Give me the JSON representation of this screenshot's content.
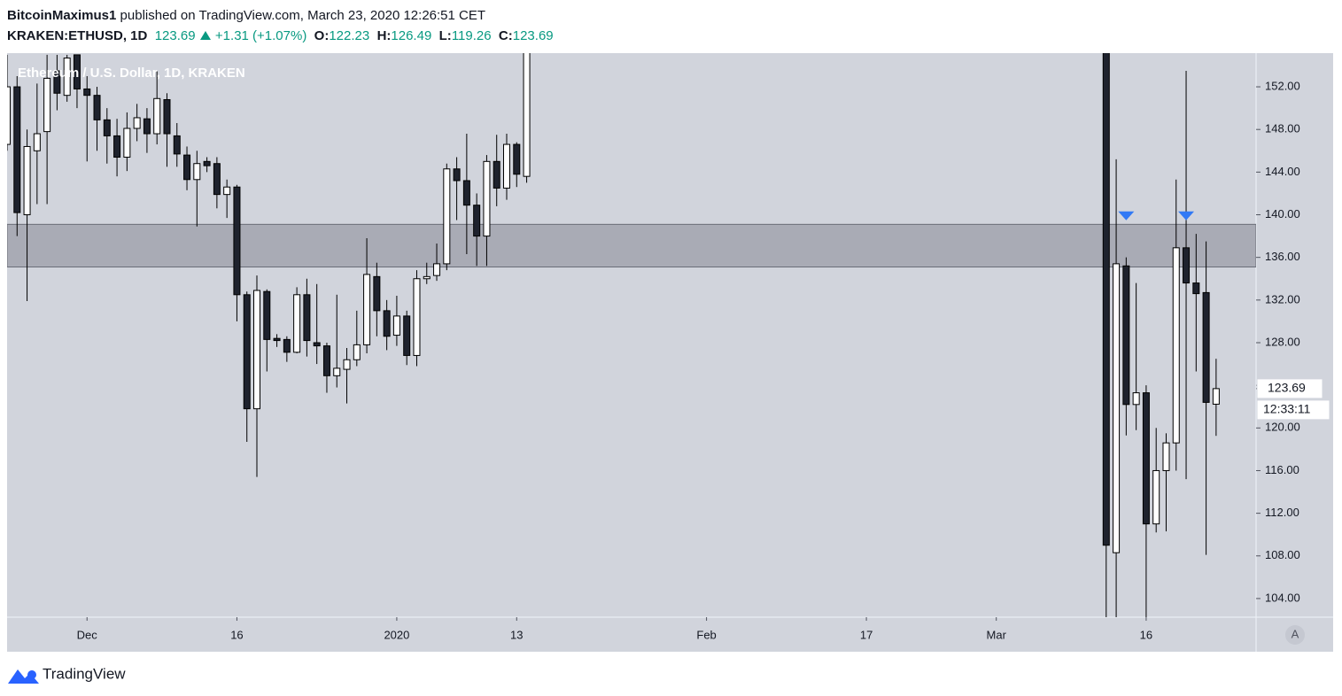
{
  "header": {
    "author": "BitcoinMaximus1",
    "published": "published on TradingView.com, March 23, 2020 12:26:51 CET",
    "symbol": "KRAKEN:ETHUSD, 1D",
    "price": 123.69,
    "change": "+1.31 (+1.07%)",
    "open_label": "O:",
    "open": 122.23,
    "high_label": "H:",
    "high": 126.49,
    "low_label": "L:",
    "low": 119.26,
    "close_label": "C:",
    "close": 123.69
  },
  "chart_data": {
    "type": "candlestick",
    "legend": "Ethereum / U.S. Dollar, 1D, KRAKEN",
    "x": [
      "2019-11-23",
      "2019-11-24",
      "2019-11-25",
      "2019-11-26",
      "2019-11-27",
      "2019-11-28",
      "2019-11-29",
      "2019-11-30",
      "2019-12-01",
      "2019-12-02",
      "2019-12-03",
      "2019-12-04",
      "2019-12-05",
      "2019-12-06",
      "2019-12-07",
      "2019-12-08",
      "2019-12-09",
      "2019-12-10",
      "2019-12-11",
      "2019-12-12",
      "2019-12-13",
      "2019-12-14",
      "2019-12-15",
      "2019-12-16",
      "2019-12-17",
      "2019-12-18",
      "2019-12-19",
      "2019-12-20",
      "2019-12-21",
      "2019-12-22",
      "2019-12-23",
      "2019-12-24",
      "2019-12-25",
      "2019-12-26",
      "2019-12-27",
      "2019-12-28",
      "2019-12-29",
      "2019-12-30",
      "2019-12-31",
      "2020-01-01",
      "2020-01-02",
      "2020-01-03",
      "2020-01-04",
      "2020-01-05",
      "2020-01-06",
      "2020-01-07",
      "2020-01-08",
      "2020-01-09",
      "2020-01-10",
      "2020-01-11",
      "2020-01-12",
      "2020-01-13",
      "2020-01-14",
      "2020-03-12",
      "2020-03-13",
      "2020-03-14",
      "2020-03-15",
      "2020-03-16",
      "2020-03-17",
      "2020-03-18",
      "2020-03-19",
      "2020-03-20",
      "2020-03-21",
      "2020-03-22",
      "2020-03-23"
    ],
    "open": [
      146.6,
      152.0,
      140.0,
      146.0,
      147.8,
      153.5,
      151.2,
      155.0,
      151.8,
      151.2,
      148.9,
      147.4,
      145.4,
      148.1,
      149.0,
      147.6,
      150.8,
      147.4,
      145.6,
      143.3,
      145.0,
      144.8,
      141.9,
      142.6,
      132.5,
      121.8,
      132.8,
      128.4,
      128.3,
      127.1,
      132.5,
      128.0,
      127.7,
      124.9,
      125.5,
      126.4,
      127.8,
      134.2,
      131.0,
      128.7,
      130.5,
      126.8,
      134.0,
      134.3,
      135.4,
      144.3,
      143.2,
      140.9,
      138.0,
      145.0,
      142.5,
      146.6,
      143.6,
      194.0,
      108.3,
      135.2,
      122.2,
      123.3,
      111.0,
      116.0,
      118.6,
      136.9,
      133.6,
      132.7,
      122.23
    ],
    "high": [
      155.0,
      153.0,
      148.0,
      152.3,
      155.0,
      155.0,
      155.0,
      155.0,
      153.0,
      152.0,
      150.0,
      149.0,
      149.6,
      150.4,
      150.0,
      153.5,
      151.4,
      148.6,
      146.4,
      146.0,
      145.4,
      145.4,
      143.3,
      142.8,
      132.8,
      134.3,
      133.0,
      128.8,
      128.6,
      133.2,
      134.0,
      133.5,
      128.0,
      132.5,
      127.5,
      131.0,
      137.8,
      135.5,
      132.0,
      132.4,
      131.0,
      134.8,
      135.5,
      137.3,
      144.8,
      145.4,
      147.6,
      142.0,
      145.6,
      147.5,
      147.6,
      146.8,
      167.0,
      195.0,
      145.2,
      136.0,
      133.6,
      124.0,
      120.0,
      119.5,
      143.3,
      153.5,
      138.2,
      137.5,
      126.49
    ],
    "low": [
      146.0,
      138.0,
      131.9,
      141.0,
      141.0,
      149.8,
      150.6,
      150.0,
      145.0,
      146.0,
      144.8,
      143.6,
      144.1,
      146.9,
      145.8,
      146.6,
      144.5,
      144.5,
      142.3,
      138.9,
      144.0,
      140.6,
      139.7,
      130.0,
      118.7,
      115.4,
      125.3,
      127.6,
      126.2,
      127.0,
      126.7,
      126.0,
      123.3,
      123.8,
      122.3,
      125.8,
      127.0,
      128.6,
      127.3,
      127.7,
      125.9,
      125.8,
      133.5,
      133.8,
      134.8,
      139.5,
      136.3,
      135.2,
      135.2,
      140.8,
      141.4,
      142.6,
      143.0,
      100.0,
      95.0,
      119.3,
      119.8,
      101.0,
      110.2,
      110.3,
      116.0,
      115.2,
      125.3,
      108.1,
      119.26
    ],
    "close": [
      152.0,
      140.2,
      146.4,
      147.6,
      152.8,
      151.4,
      154.7,
      151.8,
      151.2,
      148.9,
      147.4,
      145.4,
      148.1,
      149.1,
      147.6,
      150.9,
      147.6,
      145.7,
      143.3,
      144.8,
      144.6,
      141.9,
      142.6,
      132.5,
      121.8,
      132.9,
      128.3,
      128.2,
      127.1,
      132.5,
      128.2,
      127.7,
      124.9,
      125.6,
      126.4,
      127.8,
      134.4,
      131.0,
      128.6,
      130.5,
      126.8,
      134.0,
      134.2,
      135.4,
      144.3,
      143.2,
      140.9,
      138.0,
      145.0,
      142.5,
      146.6,
      143.8,
      165.0,
      109.0,
      135.4,
      122.2,
      123.3,
      111.0,
      116.0,
      118.6,
      136.9,
      133.6,
      132.6,
      122.4,
      123.69
    ],
    "up_color": "#ffffff",
    "down_color": "#1e222d",
    "border_color": "#000000",
    "zone": [
      135.1,
      139.1
    ],
    "markers": [
      {
        "x": "2020-03-14",
        "value": 139.9,
        "color": "#3179f5"
      },
      {
        "x": "2020-03-20",
        "value": 139.9,
        "color": "#3179f5"
      }
    ],
    "last_price": 123.69,
    "countdown": "12:33:11",
    "xlim": [
      "2019-11-23",
      "2020-03-27"
    ],
    "xticks": [
      {
        "value": "2019-12-01",
        "label": "Dec"
      },
      {
        "value": "2019-12-16",
        "label": "16"
      },
      {
        "value": "2020-01-01",
        "label": "2020"
      },
      {
        "value": "2020-01-13",
        "label": "13"
      },
      {
        "value": "2020-02-01",
        "label": "Feb"
      },
      {
        "value": "2020-02-17",
        "label": "17"
      },
      {
        "value": "2020-03-01",
        "label": "Mar"
      },
      {
        "value": "2020-03-16",
        "label": "16"
      }
    ],
    "ylim": [
      102.25,
      155.16
    ],
    "yticks": [
      {
        "value": 104,
        "label": "104.00"
      },
      {
        "value": 108,
        "label": "108.00"
      },
      {
        "value": 112,
        "label": "112.00"
      },
      {
        "value": 116,
        "label": "116.00"
      },
      {
        "value": 120,
        "label": "120.00"
      },
      {
        "value": 124,
        "label": "124.00"
      },
      {
        "value": 128,
        "label": "128.00"
      },
      {
        "value": 132,
        "label": "132.00"
      },
      {
        "value": 136,
        "label": "136.00"
      },
      {
        "value": 140,
        "label": "140.00"
      },
      {
        "value": 144,
        "label": "144.00"
      },
      {
        "value": 148,
        "label": "148.00"
      },
      {
        "value": 152,
        "label": "152.00"
      }
    ],
    "scale_button": "A"
  },
  "footer": {
    "brand": "TradingView"
  }
}
